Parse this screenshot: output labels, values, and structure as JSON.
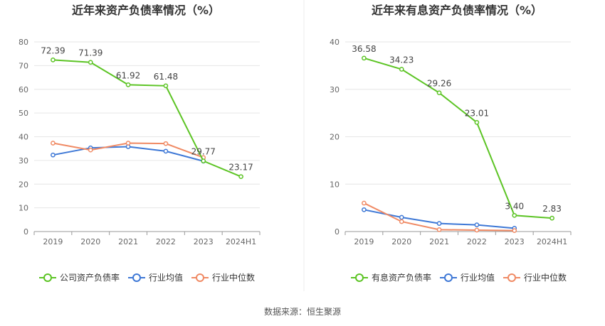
{
  "source_text": "数据来源：恒生聚源",
  "colors": {
    "company": "#5cc424",
    "industry_avg": "#3e78d6",
    "industry_median": "#f08a64",
    "grid": "#e6e6e6",
    "axis_text": "#666666",
    "title": "#333333"
  },
  "chart_data": [
    {
      "type": "line",
      "title": "近年来资产负债率情况（%）",
      "categories": [
        "2019",
        "2020",
        "2021",
        "2022",
        "2023",
        "2024H1"
      ],
      "ylim": [
        0,
        80
      ],
      "yticks": [
        0,
        10,
        20,
        30,
        40,
        50,
        60,
        70,
        80
      ],
      "grid": true,
      "legend_position": "bottom",
      "series": [
        {
          "name": "公司资产负债率",
          "color_key": "company",
          "values": [
            72.39,
            71.39,
            61.92,
            61.48,
            29.77,
            23.17
          ],
          "labels": [
            "72.39",
            "71.39",
            "61.92",
            "61.48",
            "29.77",
            "23.17"
          ]
        },
        {
          "name": "行业均值",
          "color_key": "industry_avg",
          "values": [
            32.3,
            35.3,
            35.8,
            33.9,
            29.7,
            null
          ]
        },
        {
          "name": "行业中位数",
          "color_key": "industry_median",
          "values": [
            37.3,
            34.4,
            37.3,
            37.1,
            31.2,
            null
          ]
        }
      ]
    },
    {
      "type": "line",
      "title": "近年来有息资产负债率情况（%）",
      "categories": [
        "2019",
        "2020",
        "2021",
        "2022",
        "2023",
        "2024H1"
      ],
      "ylim": [
        0,
        40
      ],
      "yticks": [
        0,
        10,
        20,
        30,
        40
      ],
      "grid": true,
      "legend_position": "bottom",
      "series": [
        {
          "name": "有息资产负债率",
          "color_key": "company",
          "values": [
            36.58,
            34.23,
            29.26,
            23.01,
            3.4,
            2.83
          ],
          "labels": [
            "36.58",
            "34.23",
            "29.26",
            "23.01",
            "3.40",
            "2.83"
          ]
        },
        {
          "name": "行业均值",
          "color_key": "industry_avg",
          "values": [
            4.6,
            3.0,
            1.7,
            1.4,
            0.7,
            null
          ]
        },
        {
          "name": "行业中位数",
          "color_key": "industry_median",
          "values": [
            6.0,
            2.1,
            0.4,
            0.3,
            0.2,
            null
          ]
        }
      ]
    }
  ]
}
